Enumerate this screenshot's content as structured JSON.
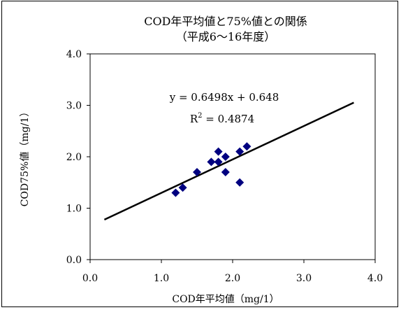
{
  "chart_data": {
    "type": "scatter",
    "title": "COD年平均値と75%値との関係",
    "subtitle": "（平成6～16年度）",
    "xlabel": "COD年平均値（mg/1）",
    "ylabel": "COD75%値（mg/1）",
    "xlim": [
      0.0,
      4.0
    ],
    "ylim": [
      0.0,
      4.0
    ],
    "x_ticks": [
      "0.0",
      "1.0",
      "2.0",
      "3.0",
      "4.0"
    ],
    "y_ticks": [
      "0.0",
      "1.0",
      "2.0",
      "3.0",
      "4.0"
    ],
    "grid": false,
    "legend": "none",
    "marker_color": "#000080",
    "points": [
      {
        "x": 1.2,
        "y": 1.3
      },
      {
        "x": 1.3,
        "y": 1.4
      },
      {
        "x": 1.5,
        "y": 1.7
      },
      {
        "x": 1.7,
        "y": 1.9
      },
      {
        "x": 1.8,
        "y": 2.1
      },
      {
        "x": 1.8,
        "y": 1.9
      },
      {
        "x": 1.9,
        "y": 2.0
      },
      {
        "x": 1.9,
        "y": 1.7
      },
      {
        "x": 2.1,
        "y": 2.1
      },
      {
        "x": 2.2,
        "y": 2.2
      },
      {
        "x": 2.1,
        "y": 1.5
      }
    ],
    "trendline": {
      "slope": 0.6498,
      "intercept": 0.648,
      "x_start": 0.2,
      "x_end": 3.7,
      "equation": "y = 0.6498x + 0.648",
      "r2_label": "R",
      "r2_sup": "2",
      "r2_value": " = 0.4874"
    }
  }
}
